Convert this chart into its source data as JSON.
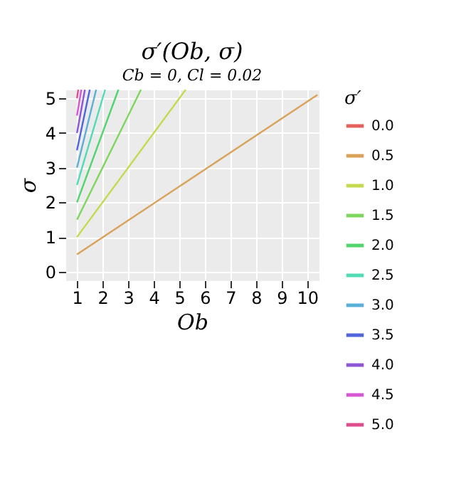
{
  "chart_data": {
    "type": "line",
    "title": "σ′(Ob, σ)",
    "subtitle": "Cb = 0, Cl = 0.02",
    "xlabel": "Ob",
    "ylabel": "σ",
    "legend_title": "σ′",
    "series": [
      {
        "name": "0.0",
        "color": "#e4605a"
      },
      {
        "name": "0.5",
        "color": "#d9a259",
        "x": [
          1,
          10.4
        ],
        "values": [
          0.5,
          5.1
        ]
      },
      {
        "name": "1.0",
        "color": "#c5d94f",
        "x": [
          1,
          5.25
        ],
        "values": [
          1.0,
          5.25
        ]
      },
      {
        "name": "1.5",
        "color": "#7fd65c",
        "x": [
          1,
          3.5
        ],
        "values": [
          1.5,
          5.25
        ]
      },
      {
        "name": "2.0",
        "color": "#52d46e",
        "x": [
          1,
          2.62
        ],
        "values": [
          2.0,
          5.25
        ]
      },
      {
        "name": "2.5",
        "color": "#51dbb5",
        "x": [
          1,
          2.1
        ],
        "values": [
          2.5,
          5.25
        ]
      },
      {
        "name": "3.0",
        "color": "#5aafd8",
        "x": [
          1,
          1.75
        ],
        "values": [
          3.0,
          5.25
        ]
      },
      {
        "name": "3.5",
        "color": "#5065d9",
        "x": [
          1,
          1.5
        ],
        "values": [
          3.5,
          5.25
        ]
      },
      {
        "name": "4.0",
        "color": "#8e55d5",
        "x": [
          1,
          1.31
        ],
        "values": [
          4.0,
          5.25
        ]
      },
      {
        "name": "4.5",
        "color": "#d659d4",
        "x": [
          1,
          1.17
        ],
        "values": [
          4.5,
          5.25
        ]
      },
      {
        "name": "5.0",
        "color": "#dd4f8c",
        "x": [
          1,
          1.05
        ],
        "values": [
          5.0,
          5.25
        ]
      }
    ],
    "xlim": [
      0.55,
      10.45
    ],
    "xticks": [
      1,
      2,
      3,
      4,
      5,
      6,
      7,
      8,
      9,
      10
    ],
    "ylim": [
      -0.25,
      5.25
    ],
    "yticks": [
      0,
      1,
      2,
      3,
      4,
      5
    ],
    "grid": true,
    "legend": "right"
  }
}
